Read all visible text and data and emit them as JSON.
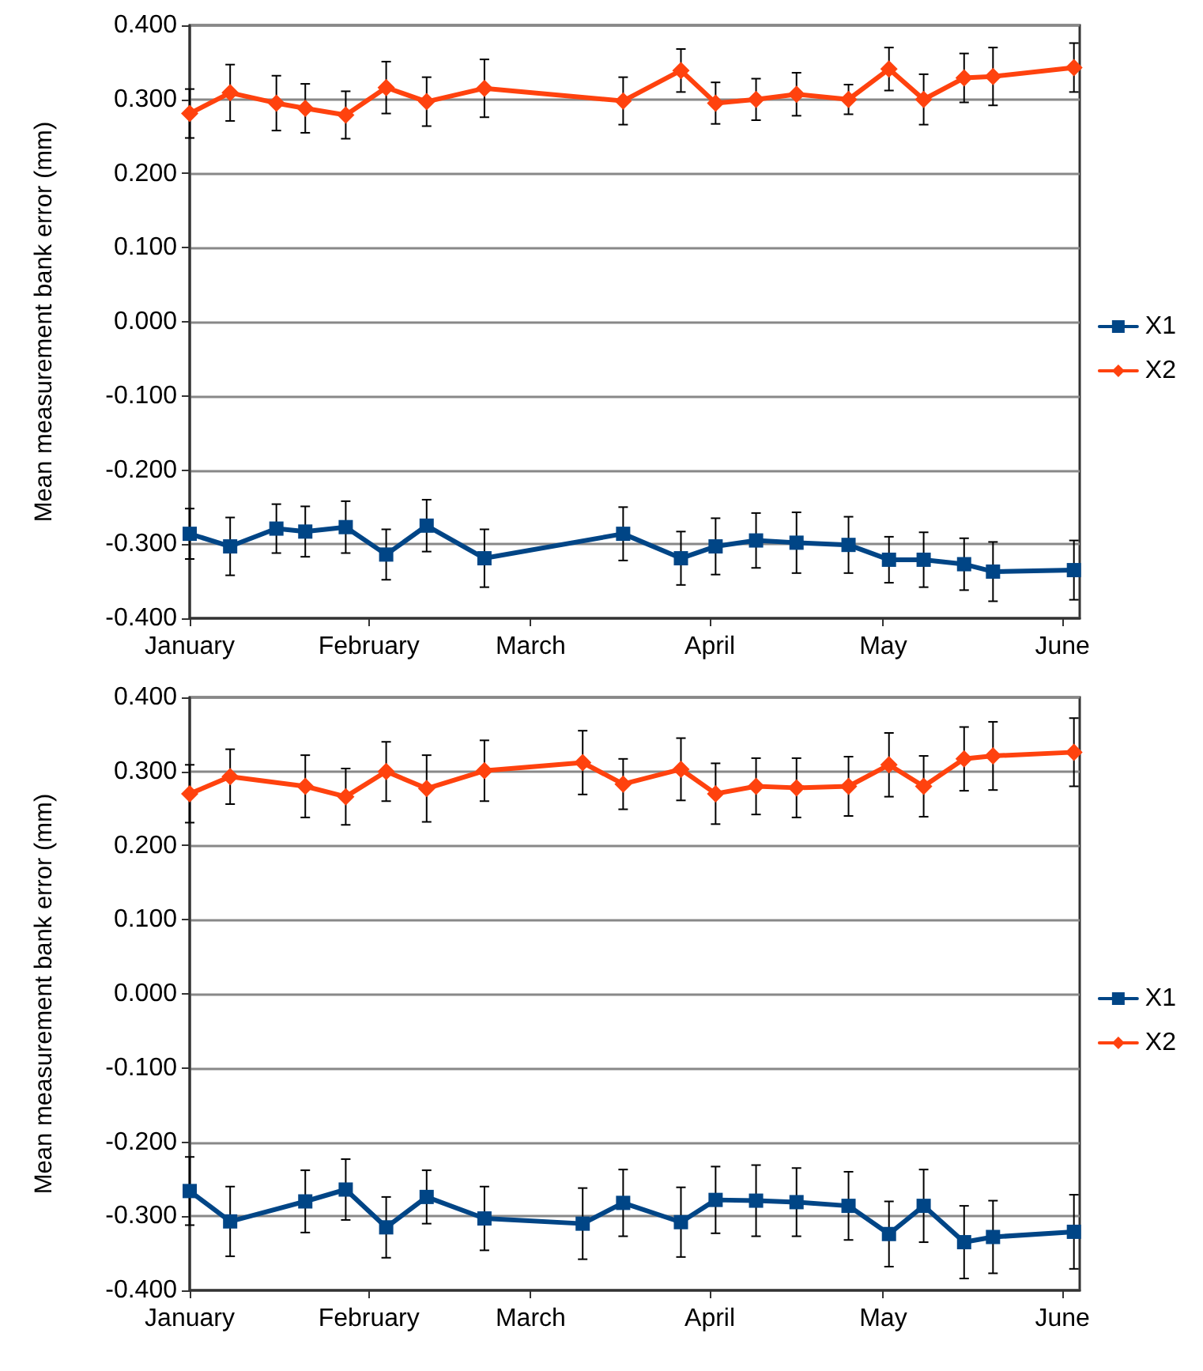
{
  "chart_data": [
    {
      "type": "line",
      "ylabel": "Mean measurement bank error (mm)",
      "xlim": [
        "--01-01",
        "--06-04"
      ],
      "ylim": [
        -0.4,
        0.4
      ],
      "xticks": [
        {
          "value": "--01-01",
          "label": "January"
        },
        {
          "value": "--02-01",
          "label": "February"
        },
        {
          "value": "--03-01",
          "label": "March"
        },
        {
          "value": "--04-01",
          "label": "April"
        },
        {
          "value": "--05-01",
          "label": "May"
        },
        {
          "value": "--06-01",
          "label": "June"
        }
      ],
      "yticks": [
        {
          "value": -0.4,
          "label": "-0.400"
        },
        {
          "value": -0.3,
          "label": "-0.300"
        },
        {
          "value": -0.2,
          "label": "-0.200"
        },
        {
          "value": -0.1,
          "label": "-0.100"
        },
        {
          "value": 0,
          "label": "0.000"
        },
        {
          "value": 0.1,
          "label": "0.100"
        },
        {
          "value": 0.2,
          "label": "0.200"
        },
        {
          "value": 0.3,
          "label": "0.300"
        },
        {
          "value": 0.4,
          "label": "0.400"
        }
      ],
      "grid": "y",
      "legend": "right",
      "line_style": "solid",
      "x": [
        "--01-01",
        "--01-08",
        "--01-16",
        "--01-21",
        "--01-28",
        "--02-04",
        "--02-11",
        "--02-21",
        "--03-17",
        "--03-27",
        "--04-02",
        "--04-09",
        "--04-16",
        "--04-25",
        "--05-02",
        "--05-08",
        "--05-15",
        "--05-20",
        "--06-03"
      ],
      "series": [
        {
          "name": "X1",
          "color": "#004586",
          "marker": "square",
          "values": [
            -0.286,
            -0.303,
            -0.279,
            -0.283,
            -0.277,
            -0.314,
            -0.275,
            -0.319,
            -0.286,
            -0.319,
            -0.303,
            -0.295,
            -0.298,
            -0.301,
            -0.321,
            -0.321,
            -0.327,
            -0.337,
            -0.335
          ],
          "errors": [
            0.034,
            0.039,
            0.033,
            0.034,
            0.035,
            0.034,
            0.035,
            0.039,
            0.036,
            0.036,
            0.038,
            0.037,
            0.041,
            0.038,
            0.031,
            0.037,
            0.035,
            0.04,
            0.04
          ]
        },
        {
          "name": "X2",
          "color": "#ff420e",
          "marker": "diamond",
          "values": [
            0.281,
            0.309,
            0.295,
            0.288,
            0.279,
            0.316,
            0.297,
            0.315,
            0.298,
            0.339,
            0.295,
            0.3,
            0.307,
            0.3,
            0.341,
            0.3,
            0.329,
            0.331,
            0.343
          ],
          "errors": [
            0.033,
            0.038,
            0.037,
            0.033,
            0.032,
            0.035,
            0.033,
            0.039,
            0.032,
            0.029,
            0.028,
            0.028,
            0.029,
            0.02,
            0.029,
            0.034,
            0.033,
            0.039,
            0.033
          ]
        }
      ]
    },
    {
      "type": "line",
      "ylabel": "Mean measurement bank error (mm)",
      "xlim": [
        "--01-01",
        "--06-04"
      ],
      "ylim": [
        -0.4,
        0.4
      ],
      "xticks": [
        {
          "value": "--01-01",
          "label": "January"
        },
        {
          "value": "--02-01",
          "label": "February"
        },
        {
          "value": "--03-01",
          "label": "March"
        },
        {
          "value": "--04-01",
          "label": "April"
        },
        {
          "value": "--05-01",
          "label": "May"
        },
        {
          "value": "--06-01",
          "label": "June"
        }
      ],
      "yticks": [
        {
          "value": -0.4,
          "label": "-0.400"
        },
        {
          "value": -0.3,
          "label": "-0.300"
        },
        {
          "value": -0.2,
          "label": "-0.200"
        },
        {
          "value": -0.1,
          "label": "-0.100"
        },
        {
          "value": 0,
          "label": "0.000"
        },
        {
          "value": 0.1,
          "label": "0.100"
        },
        {
          "value": 0.2,
          "label": "0.200"
        },
        {
          "value": 0.3,
          "label": "0.300"
        },
        {
          "value": 0.4,
          "label": "0.400"
        }
      ],
      "grid": "y",
      "legend": "right",
      "line_style": "solid",
      "x": [
        "--01-01",
        "--01-08",
        "--01-21",
        "--01-28",
        "--02-04",
        "--02-11",
        "--02-21",
        "--03-10",
        "--03-17",
        "--03-27",
        "--04-02",
        "--04-09",
        "--04-16",
        "--04-25",
        "--05-02",
        "--05-08",
        "--05-15",
        "--05-20",
        "--06-03"
      ],
      "series": [
        {
          "name": "X1",
          "color": "#004586",
          "marker": "square",
          "values": [
            -0.266,
            -0.307,
            -0.28,
            -0.264,
            -0.315,
            -0.274,
            -0.303,
            -0.31,
            -0.282,
            -0.308,
            -0.278,
            -0.279,
            -0.281,
            -0.286,
            -0.324,
            -0.286,
            -0.335,
            -0.328,
            -0.321
          ],
          "errors": [
            0.046,
            0.047,
            0.042,
            0.041,
            0.041,
            0.036,
            0.043,
            0.048,
            0.045,
            0.047,
            0.045,
            0.048,
            0.046,
            0.046,
            0.044,
            0.049,
            0.049,
            0.049,
            0.05
          ]
        },
        {
          "name": "X2",
          "color": "#ff420e",
          "marker": "diamond",
          "values": [
            0.27,
            0.293,
            0.28,
            0.266,
            0.3,
            0.277,
            0.301,
            0.312,
            0.283,
            0.303,
            0.27,
            0.28,
            0.278,
            0.28,
            0.309,
            0.28,
            0.317,
            0.321,
            0.326
          ],
          "errors": [
            0.039,
            0.037,
            0.042,
            0.038,
            0.04,
            0.045,
            0.041,
            0.043,
            0.034,
            0.042,
            0.041,
            0.038,
            0.04,
            0.04,
            0.043,
            0.041,
            0.043,
            0.046,
            0.046
          ]
        }
      ]
    }
  ]
}
